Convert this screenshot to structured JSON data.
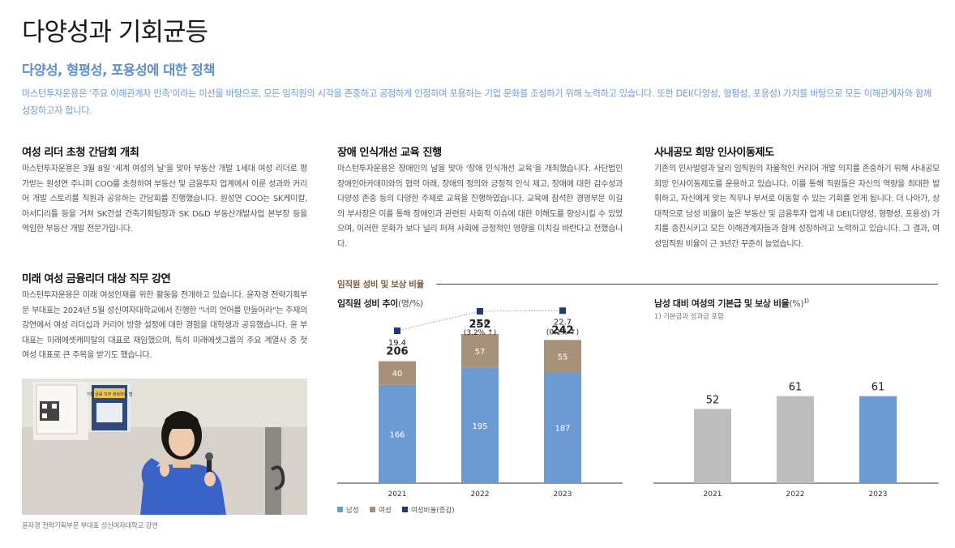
{
  "page": {
    "title": "다양성과 기회균등",
    "subtitle": "다양성, 형평성, 포용성에 대한 정책",
    "intro": "마스턴투자운용은 '주요 이해관계자 만족'이라는 미션을 바탕으로, 모든 임직원의 시각을 존중하고 공정하게 인정하며 포용하는 기업 문화를 조성하기 위해 노력하고 있습니다. 또한 DEI(다양성, 형평성, 포용성) 가치를 바탕으로 모든 이해관계자와 함께 성장하고자 합니다."
  },
  "sections": {
    "leaders": {
      "title": "여성 리더 초청 간담회 개최",
      "body": "마스턴투자운용은 3월 8일 '세계 여성의 날'을 맞아 부동산 개발 1세대 여성 리더로 평가받는 원성연 주니퍼 COO를 초청하여 부동산 및 금융투자 업계에서 이룬 성과와 커리어 개발 스토리를 직원과 공유하는 간담회를 진행했습니다. 원성연 COO는 SK케미칼, 아서디리틀 등을 거쳐 SK건설 건축기획팀장과 SK D&D 부동산개발사업 본부장 등을 역임한 부동산 개발 전문가입니다."
    },
    "lecture": {
      "title": "미래 여성 금융리더 대상 직무 강연",
      "body": "마스턴투자운용은 미래 여성인재를 위한 활동을 전개하고 있습니다. 윤자경 전략기획부문 부대표는 2024년 5월 성신여자대학교에서 진행한 \"너의 언어를 만들어라\"는 주제의 강연에서 여성 리더십과 커리어 방향 설정에 대한 경험을 대학생과 공유했습니다. 윤 부대표는 미래에셋캐피탈의 대표로 재임했으며, 특히 미래에셋그룹의 주요 계열사 중 첫 여성 대표로 큰 주목을 받기도 했습니다."
    },
    "disability": {
      "title": "장애 인식개선 교육 진행",
      "body": "마스턴투자운용은 장애인의 날을 맞아 '장애 인식개선 교육'을 개최했습니다. 사단법인 장애인아카데미와의 협력 아래, 장애의 정의와 긍정적 인식 제고, 장애에 대한 감수성과 다양성 존중 등의 다양한 주제로 교육을 진행하였습니다. 교육에 참석한 경영부문 이길의 부사장은 이를 통해 장애인과 관련된 사회적 이슈에 대한 이해도를 향상시킬 수 있었으며, 이러한 문화가 보다 널리 퍼져 사회에 긍정적인 영향을 미치길 바란다고 전했습니다."
    },
    "transfer": {
      "title": "사내공모 희망 인사이동제도",
      "body": "기존의 인사발령과 달리 임직원의 자율적인 커리어 개발 의지를 존중하기 위해 사내공모 희망 인사이동제도를 운용하고 있습니다. 이를 통해 직원들은 자신의 역량을 최대한 발휘하고, 자신에게 맞는 직무나 부서로 이동할 수 있는 기회를 얻게 됩니다. 더 나아가, 상대적으로 남성 비율이 높은 부동산 및 금융투자 업계 내 DEI(다양성, 형평성, 포용성) 가치를 증진시키고 모든 이해관계자들과 함께 성장하려고 노력하고 있습니다. 그 결과, 여성임직원 비율이 근 3년간 꾸준히 늘었습니다."
    }
  },
  "photo": {
    "caption": "윤자경 전략기획부문 부대표 성신여자대학교 강연",
    "poster_text": "가장 금융 직무 정복하는 법"
  },
  "charts": {
    "header": "임직원 성비 및 보상 비율",
    "legend": [
      {
        "label": "남성",
        "color": "#6b9bd2"
      },
      {
        "label": "여성",
        "color": "#a89179"
      },
      {
        "label": "여성비율(증감)",
        "color": "#1f3b73"
      }
    ]
  },
  "chart_data": [
    {
      "type": "bar",
      "title": "임직원 성비 추이",
      "unit": "(명/%)",
      "stacked": true,
      "categories": [
        "2021",
        "2022",
        "2023"
      ],
      "series": [
        {
          "name": "남성",
          "values": [
            166,
            195,
            187
          ]
        },
        {
          "name": "여성",
          "values": [
            40,
            57,
            55
          ]
        }
      ],
      "totals": [
        "206",
        "252",
        "242"
      ],
      "female_ratio": {
        "name": "여성비율(증감)",
        "values": [
          19.4,
          22.6,
          22.7
        ],
        "labels": [
          "19.4",
          "22.6",
          "22.7"
        ],
        "changes": [
          "",
          "(3.2% ↑)",
          "(0.1% ↑)"
        ]
      },
      "ylim": [
        0,
        300
      ]
    },
    {
      "type": "bar",
      "title": "남성 대비 여성의 기본급 및 보상 비율",
      "unit": "(%)",
      "footnote_mark": "1)",
      "note": "1) 기본급과 성과급 포함",
      "categories": [
        "2021",
        "2022",
        "2023"
      ],
      "values": [
        52,
        61,
        61
      ],
      "labels": [
        "52",
        "61",
        "61"
      ],
      "colors": [
        "#bdbdbd",
        "#bdbdbd",
        "#6b9bd2"
      ],
      "ylim": [
        0,
        100
      ]
    }
  ]
}
